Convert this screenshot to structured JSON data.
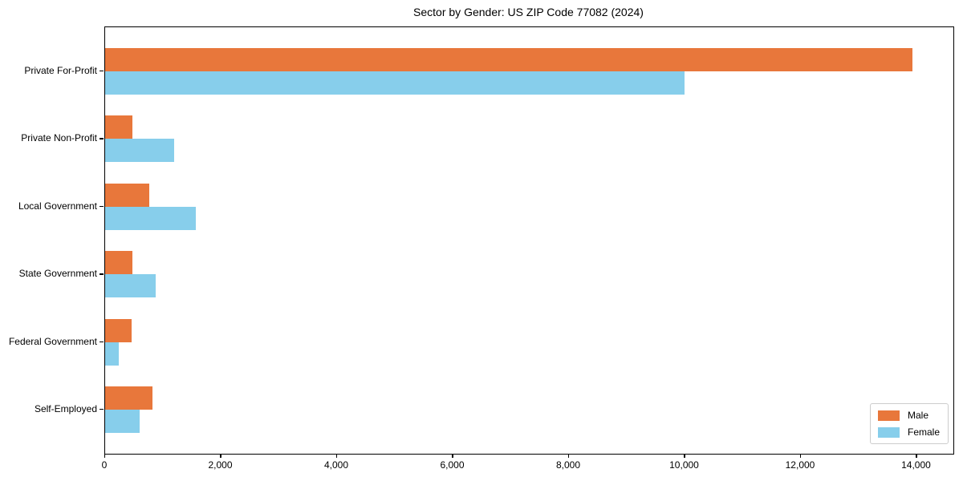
{
  "chart_data": {
    "type": "bar",
    "orientation": "horizontal",
    "title": "Sector by Gender: US ZIP Code 77082 (2024)",
    "categories": [
      "Private For-Profit",
      "Private Non-Profit",
      "Local Government",
      "State Government",
      "Federal Government",
      "Self-Employed"
    ],
    "series": [
      {
        "name": "Male",
        "color": "#E8773B",
        "values": [
          13930,
          470,
          760,
          470,
          450,
          810
        ]
      },
      {
        "name": "Female",
        "color": "#87CEEB",
        "values": [
          10000,
          1190,
          1570,
          870,
          240,
          600
        ]
      }
    ],
    "xlabel": "",
    "ylabel": "",
    "xlim": [
      0,
      14630
    ],
    "xticks": [
      0,
      2000,
      4000,
      6000,
      8000,
      10000,
      12000,
      14000
    ],
    "xtick_labels": [
      "0",
      "2,000",
      "4,000",
      "6,000",
      "8,000",
      "10,000",
      "12,000",
      "14,000"
    ],
    "legend_position": "lower right",
    "grid": false,
    "bar_height_fraction": 0.345
  }
}
